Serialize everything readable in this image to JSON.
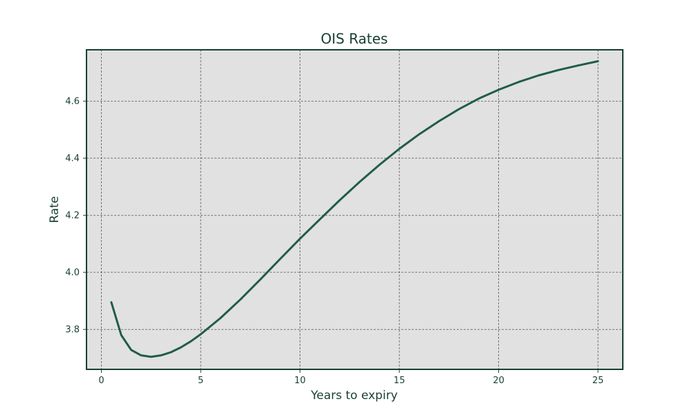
{
  "chart_data": {
    "type": "line",
    "title": "OIS Rates",
    "xlabel": "Years to expiry",
    "ylabel": "Rate",
    "xlim": [
      -0.75,
      26.25
    ],
    "ylim": [
      3.66,
      4.78
    ],
    "x_ticks": [
      0,
      5,
      10,
      15,
      20,
      25
    ],
    "y_ticks": [
      3.8,
      4.0,
      4.2,
      4.4,
      4.6
    ],
    "y_tick_labels": [
      "3.8",
      "4.0",
      "4.2",
      "4.4",
      "4.6"
    ],
    "grid": true,
    "colors": {
      "line": "#1f5c4a",
      "frame": "#173f35",
      "plot_background": "#e1e1e1"
    },
    "series": [
      {
        "x": [
          0.5,
          1,
          1.5,
          2,
          2.5,
          3,
          3.5,
          4,
          4.5,
          5,
          6,
          7,
          8,
          9,
          10,
          11,
          12,
          13,
          14,
          15,
          16,
          17,
          18,
          19,
          20,
          21,
          22,
          23,
          24,
          25
        ],
        "values": [
          3.895,
          3.78,
          3.728,
          3.709,
          3.704,
          3.709,
          3.72,
          3.737,
          3.758,
          3.783,
          3.84,
          3.905,
          3.975,
          4.047,
          4.118,
          4.186,
          4.253,
          4.317,
          4.377,
          4.433,
          4.484,
          4.53,
          4.572,
          4.609,
          4.64,
          4.667,
          4.69,
          4.709,
          4.725,
          4.74
        ]
      }
    ]
  }
}
